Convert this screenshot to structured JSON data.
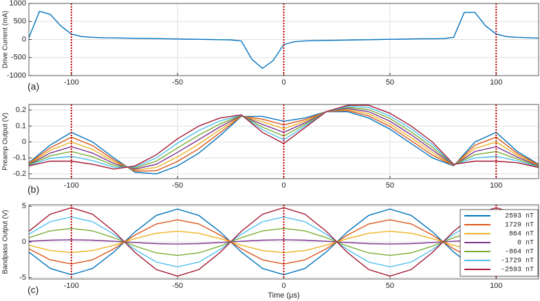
{
  "chart_data": [
    {
      "type": "line",
      "label": "(a)",
      "y_label": "Drive Current (mA)",
      "x": [
        -120,
        -115,
        -110,
        -105,
        -100,
        -95,
        -90,
        -85,
        -80,
        -75,
        -70,
        -65,
        -60,
        -55,
        -50,
        -45,
        -40,
        -35,
        -30,
        -25,
        -20,
        -15,
        -10,
        -5,
        0,
        5,
        10,
        15,
        20,
        25,
        30,
        35,
        40,
        45,
        50,
        55,
        60,
        65,
        70,
        75,
        80,
        85,
        90,
        95,
        100,
        105,
        110,
        115,
        120
      ],
      "series": [
        {
          "color": "#0072BD",
          "values": [
            50,
            780,
            700,
            380,
            150,
            80,
            60,
            50,
            45,
            40,
            35,
            30,
            25,
            20,
            15,
            10,
            5,
            0,
            -5,
            -10,
            -40,
            -550,
            -800,
            -580,
            -140,
            -60,
            -40,
            -30,
            -25,
            -20,
            -15,
            -10,
            -5,
            0,
            5,
            10,
            15,
            20,
            20,
            25,
            60,
            750,
            750,
            380,
            150,
            80,
            60,
            50,
            40
          ]
        }
      ],
      "xlim": [
        -120,
        120
      ],
      "xticks": [
        -100,
        -50,
        0,
        50,
        100
      ],
      "ylim": [
        -1000,
        1000
      ],
      "yticks": [
        -1000,
        -500,
        0,
        500,
        1000
      ],
      "grid": true,
      "vlines": [
        -100,
        0,
        100
      ],
      "vline_color": "#c00000"
    },
    {
      "type": "line",
      "label": "(b)",
      "y_label": "Preamp Output (V)",
      "x": [
        -120,
        -110,
        -100,
        -90,
        -80,
        -70,
        -60,
        -50,
        -40,
        -30,
        -20,
        -10,
        0,
        10,
        20,
        30,
        40,
        50,
        60,
        70,
        80,
        90,
        100,
        110,
        120
      ],
      "series": [
        {
          "color": "#0072BD",
          "values": [
            -0.13,
            -0.02,
            0.06,
            0,
            -0.1,
            -0.19,
            -0.2,
            -0.15,
            -0.07,
            0.04,
            0.16,
            0.16,
            0.13,
            0.15,
            0.19,
            0.19,
            0.15,
            0.08,
            -0.01,
            -0.1,
            -0.15,
            0,
            0.06,
            -0.06,
            -0.14
          ]
        },
        {
          "color": "#D95319",
          "values": [
            -0.133,
            -0.037,
            0.03,
            -0.023,
            -0.112,
            -0.183,
            -0.18,
            -0.122,
            -0.042,
            0.058,
            0.162,
            0.143,
            0.107,
            0.14,
            0.19,
            0.197,
            0.163,
            0.097,
            0.008,
            -0.083,
            -0.148,
            -0.02,
            0.03,
            -0.072,
            -0.143
          ]
        },
        {
          "color": "#EDB120",
          "values": [
            -0.137,
            -0.053,
            0,
            -0.047,
            -0.123,
            -0.177,
            -0.16,
            -0.093,
            -0.013,
            0.077,
            0.163,
            0.127,
            0.083,
            0.13,
            0.19,
            0.203,
            0.177,
            0.113,
            0.027,
            -0.067,
            -0.147,
            -0.04,
            0,
            -0.083,
            -0.147
          ]
        },
        {
          "color": "#7E2F8E",
          "values": [
            -0.14,
            -0.07,
            -0.03,
            -0.07,
            -0.135,
            -0.17,
            -0.14,
            -0.065,
            0.015,
            0.095,
            0.165,
            0.11,
            0.06,
            0.12,
            0.19,
            0.21,
            0.19,
            0.13,
            0.045,
            -0.05,
            -0.145,
            -0.06,
            -0.03,
            -0.095,
            -0.15
          ]
        },
        {
          "color": "#77AC30",
          "values": [
            -0.143,
            -0.087,
            -0.06,
            -0.093,
            -0.147,
            -0.163,
            -0.12,
            -0.037,
            0.043,
            0.113,
            0.167,
            0.093,
            0.037,
            0.11,
            0.19,
            0.217,
            0.203,
            0.147,
            0.063,
            -0.033,
            -0.143,
            -0.08,
            -0.06,
            -0.107,
            -0.153
          ]
        },
        {
          "color": "#4DBEEE",
          "values": [
            -0.147,
            -0.103,
            -0.09,
            -0.117,
            -0.158,
            -0.157,
            -0.1,
            -0.008,
            0.072,
            0.132,
            0.168,
            0.077,
            0.013,
            0.1,
            0.19,
            0.223,
            0.217,
            0.163,
            0.082,
            -0.017,
            -0.142,
            -0.1,
            -0.09,
            -0.118,
            -0.157
          ]
        },
        {
          "color": "#A2142F",
          "values": [
            -0.15,
            -0.12,
            -0.12,
            -0.14,
            -0.17,
            -0.15,
            -0.08,
            0.02,
            0.1,
            0.15,
            0.17,
            0.06,
            -0.01,
            0.09,
            0.19,
            0.23,
            0.23,
            0.18,
            0.1,
            0,
            -0.14,
            -0.12,
            -0.12,
            -0.13,
            -0.16
          ]
        }
      ],
      "xlim": [
        -120,
        120
      ],
      "xticks": [
        -100,
        -50,
        0,
        50,
        100
      ],
      "ylim": [
        -0.23,
        0.235
      ],
      "yticks": [
        -0.2,
        -0.1,
        0,
        0.1,
        0.2
      ],
      "grid": true,
      "vlines": [
        -100,
        0,
        100
      ],
      "vline_color": "#c00000"
    },
    {
      "type": "line",
      "label": "(c)",
      "y_label": "Bandpass Output (V)",
      "x_label": "Time (μs)",
      "x": [
        -120,
        -110,
        -100,
        -90,
        -80,
        -70,
        -60,
        -50,
        -40,
        -30,
        -20,
        -10,
        0,
        10,
        20,
        30,
        40,
        50,
        60,
        70,
        80,
        90,
        100,
        110,
        120
      ],
      "series": [
        {
          "name": "2593 nT",
          "color": "#0072BD",
          "values": [
            -1.42,
            -3.72,
            -4.6,
            -3.72,
            -1.42,
            1.42,
            3.72,
            4.6,
            3.72,
            1.42,
            -1.42,
            -3.72,
            -4.6,
            -3.72,
            -1.42,
            1.42,
            3.72,
            4.6,
            3.72,
            1.42,
            -1.42,
            -3.72,
            -4.6,
            -3.72,
            -1.42
          ]
        },
        {
          "name": "1729 nT",
          "color": "#D95319",
          "values": [
            -0.96,
            -2.51,
            -3.1,
            -2.51,
            -0.96,
            0.96,
            2.51,
            3.1,
            2.51,
            0.96,
            -0.96,
            -2.51,
            -3.1,
            -2.51,
            -0.96,
            0.96,
            2.51,
            3.1,
            2.51,
            0.96,
            -0.96,
            -2.51,
            -3.1,
            -2.51,
            -0.96
          ]
        },
        {
          "name": "864 nT",
          "color": "#EDB120",
          "values": [
            -0.46,
            -1.21,
            -1.5,
            -1.21,
            -0.46,
            0.46,
            1.21,
            1.5,
            1.21,
            0.46,
            -0.46,
            -1.21,
            -1.5,
            -1.21,
            -0.46,
            0.46,
            1.21,
            1.5,
            1.21,
            0.46,
            -0.46,
            -1.21,
            -1.5,
            -1.21,
            -0.46
          ]
        },
        {
          "name": "0 nT",
          "color": "#7E2F8E",
          "values": [
            0.09,
            0.24,
            0.3,
            0.24,
            0.09,
            -0.09,
            -0.24,
            -0.3,
            -0.24,
            -0.09,
            0.09,
            0.24,
            0.3,
            0.24,
            0.09,
            -0.09,
            -0.24,
            -0.3,
            -0.24,
            -0.09,
            0.09,
            0.24,
            0.3,
            0.24,
            0.09
          ]
        },
        {
          "name": "-864 nT",
          "color": "#77AC30",
          "values": [
            0.59,
            1.54,
            1.9,
            1.54,
            0.59,
            -0.59,
            -1.54,
            -1.9,
            -1.54,
            -0.59,
            0.59,
            1.54,
            1.9,
            1.54,
            0.59,
            -0.59,
            -1.54,
            -1.9,
            -1.54,
            -0.59,
            0.59,
            1.54,
            1.9,
            1.54,
            0.59
          ]
        },
        {
          "name": "-1729 nT",
          "color": "#4DBEEE",
          "values": [
            1.08,
            2.83,
            3.5,
            2.83,
            1.08,
            -1.08,
            -2.83,
            -3.5,
            -2.83,
            -1.08,
            1.08,
            2.83,
            3.5,
            2.83,
            1.08,
            -1.08,
            -2.83,
            -3.5,
            -2.83,
            -1.08,
            1.08,
            2.83,
            3.5,
            2.83,
            1.08
          ]
        },
        {
          "name": "-2593 nT",
          "color": "#A2142F",
          "values": [
            1.48,
            3.88,
            4.8,
            3.88,
            1.48,
            -1.48,
            -3.88,
            -4.8,
            -3.88,
            -1.48,
            1.48,
            3.88,
            4.8,
            3.88,
            1.48,
            -1.48,
            -3.88,
            -4.8,
            -3.88,
            -1.48,
            1.48,
            3.88,
            4.8,
            3.88,
            1.48
          ]
        }
      ],
      "xlim": [
        -120,
        120
      ],
      "xticks": [
        -100,
        -50,
        0,
        50,
        100
      ],
      "ylim": [
        -5.2,
        5.2
      ],
      "yticks": [
        -5,
        0,
        5
      ],
      "grid": true,
      "vlines": [
        -100,
        0,
        100
      ],
      "vline_color": "#c00000",
      "legend": "upper right"
    }
  ]
}
